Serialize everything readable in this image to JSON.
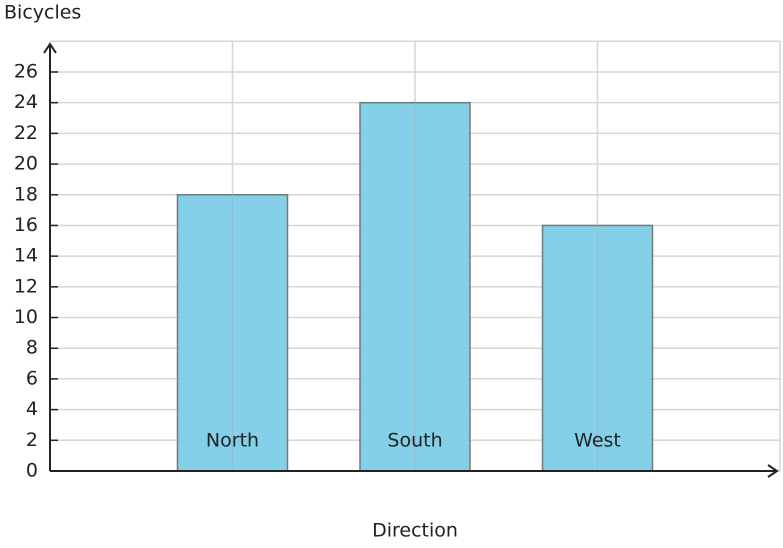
{
  "chart_data": {
    "type": "bar",
    "y_label": "Bicycles",
    "x_label": "Direction",
    "categories": [
      "North",
      "South",
      "West"
    ],
    "values": [
      18,
      24,
      16
    ],
    "color": "#7ecde8",
    "ylim": [
      0,
      28
    ],
    "yticks": [
      0,
      2,
      4,
      6,
      8,
      10,
      12,
      14,
      16,
      18,
      20,
      22,
      24,
      26
    ],
    "grid": true
  }
}
